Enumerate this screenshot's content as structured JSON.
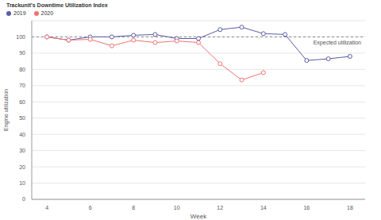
{
  "chart_data": {
    "type": "line",
    "title": "Trackunit's Downtime Utilization Index",
    "x_label": "Week",
    "y_label": "Engine utilization",
    "x": [
      4,
      5,
      6,
      7,
      8,
      9,
      10,
      11,
      12,
      13,
      14,
      15,
      16,
      17,
      18
    ],
    "series": [
      {
        "name": "2019",
        "color": "#5b5ba8",
        "marker": "circle",
        "values": [
          100,
          98,
          100,
          100,
          101,
          101.5,
          99,
          99,
          104.5,
          106,
          102,
          101.5,
          85.5,
          86.5,
          88
        ]
      },
      {
        "name": "2020",
        "color": "#f07272",
        "marker": "circle",
        "values": [
          100,
          98,
          98.5,
          94.5,
          98,
          96.5,
          97.5,
          96.5,
          83.5,
          73.5,
          78,
          null,
          null,
          null,
          null
        ]
      }
    ],
    "xlim": [
      3.3,
      18.7
    ],
    "xticks": [
      4,
      6,
      8,
      10,
      12,
      14,
      16,
      18
    ],
    "ylim": [
      0,
      110
    ],
    "yticks": [
      0,
      10,
      20,
      30,
      40,
      50,
      60,
      70,
      80,
      90,
      100
    ],
    "grid": true,
    "legend": "top-left",
    "annotations": [
      {
        "text": "Expected utilization",
        "y": 100
      }
    ]
  }
}
